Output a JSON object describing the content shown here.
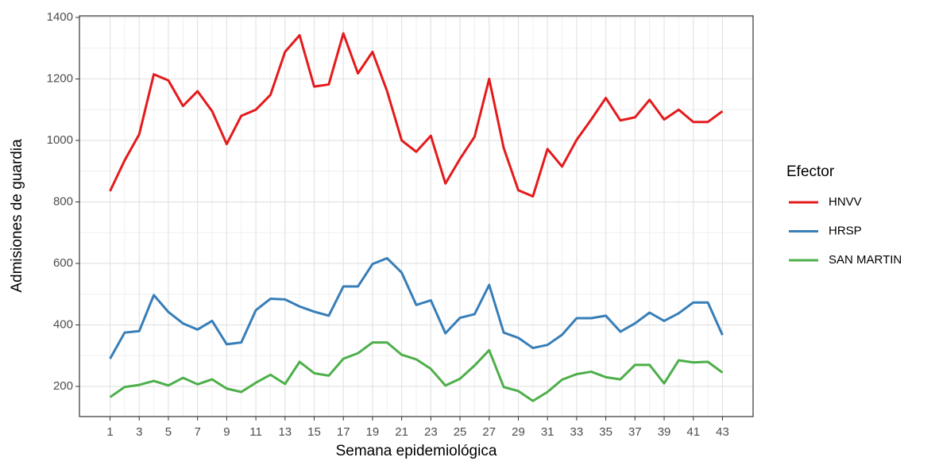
{
  "chart_data": {
    "type": "line",
    "x_label": "Semana epidemiológica",
    "y_label": "Admisiones de guardia",
    "legend_title": "Efector",
    "legend_position": "right",
    "grid": true,
    "x": [
      1,
      2,
      3,
      4,
      5,
      6,
      7,
      8,
      9,
      10,
      11,
      12,
      13,
      14,
      15,
      16,
      17,
      18,
      19,
      20,
      21,
      22,
      23,
      24,
      25,
      26,
      27,
      28,
      29,
      30,
      31,
      32,
      33,
      34,
      35,
      36,
      37,
      38,
      39,
      40,
      41,
      42,
      43
    ],
    "xlim": [
      -1.1,
      45.1
    ],
    "xticks": [
      1,
      3,
      5,
      7,
      9,
      11,
      13,
      15,
      17,
      19,
      21,
      23,
      25,
      27,
      29,
      31,
      33,
      35,
      37,
      39,
      41,
      43
    ],
    "ylim": [
      102,
      1405
    ],
    "yticks": [
      200,
      400,
      600,
      800,
      1000,
      1200,
      1400
    ],
    "series": [
      {
        "name": "HNVV",
        "color": "#E41A1C",
        "values": [
          835,
          935,
          1020,
          1215,
          1195,
          1112,
          1160,
          1095,
          988,
          1080,
          1100,
          1148,
          1288,
          1342,
          1175,
          1182,
          1348,
          1218,
          1288,
          1160,
          1000,
          963,
          1015,
          860,
          940,
          1012,
          1200,
          975,
          838,
          818,
          972,
          915,
          1002,
          1068,
          1138,
          1065,
          1075,
          1132,
          1068,
          1100,
          1060,
          1060,
          1095
        ]
      },
      {
        "name": "HRSP",
        "color": "#377EB8",
        "values": [
          290,
          375,
          380,
          497,
          442,
          405,
          385,
          413,
          337,
          343,
          448,
          485,
          483,
          460,
          443,
          430,
          525,
          525,
          598,
          617,
          570,
          465,
          480,
          373,
          423,
          435,
          530,
          375,
          358,
          325,
          335,
          368,
          422,
          422,
          430,
          378,
          405,
          440,
          413,
          438,
          473,
          473,
          367
        ]
      },
      {
        "name": "SAN MARTIN",
        "color": "#4DAF4A",
        "values": [
          165,
          198,
          205,
          218,
          203,
          228,
          207,
          223,
          193,
          182,
          212,
          238,
          208,
          280,
          243,
          235,
          290,
          308,
          343,
          343,
          303,
          288,
          257,
          203,
          225,
          268,
          318,
          198,
          185,
          153,
          182,
          222,
          240,
          248,
          230,
          223,
          270,
          270,
          210,
          285,
          278,
          280,
          245
        ]
      }
    ]
  }
}
